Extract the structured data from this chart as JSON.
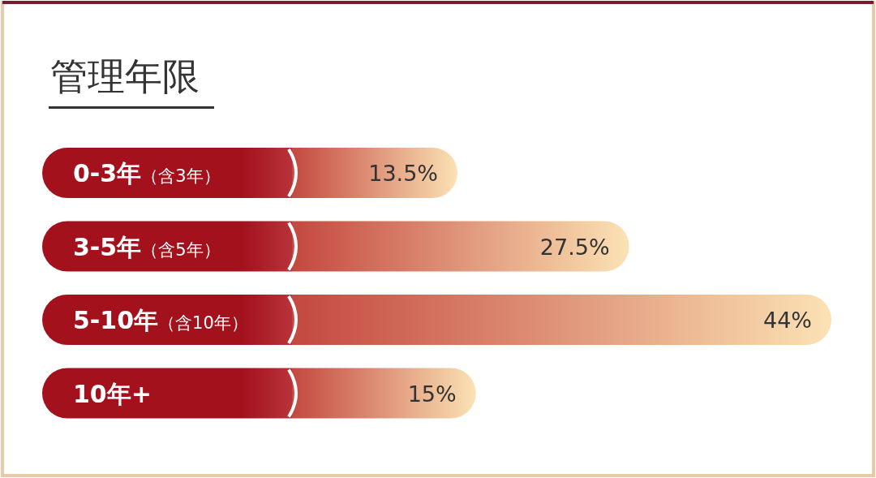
{
  "chart_data": {
    "type": "bar",
    "orientation": "horizontal",
    "title": "管理年限",
    "categories": [
      "0-3年（含3年）",
      "3-5年（含5年）",
      "5-10年（含10年）",
      "10年+"
    ],
    "values": [
      13.5,
      27.5,
      44,
      15
    ],
    "value_labels": [
      "13.5%",
      "27.5%",
      "44%",
      "15%"
    ],
    "color": "#a3111d"
  }
}
